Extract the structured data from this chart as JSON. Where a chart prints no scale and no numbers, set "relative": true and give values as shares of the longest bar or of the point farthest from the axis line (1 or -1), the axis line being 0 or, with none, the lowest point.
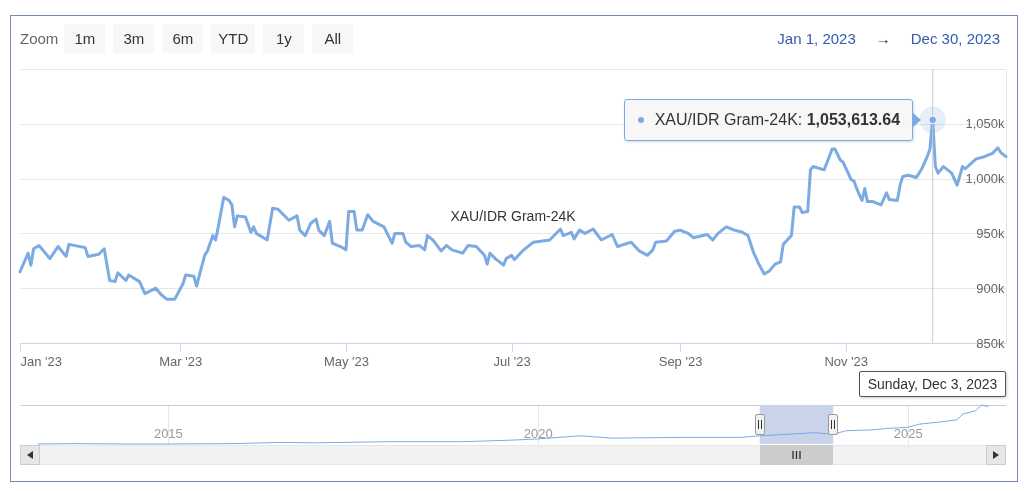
{
  "chart_data": [
    {
      "type": "line",
      "x": [
        "2023-01-01",
        "2023-01-04",
        "2023-01-05",
        "2023-01-06",
        "2023-01-08",
        "2023-01-12",
        "2023-01-15",
        "2023-01-18",
        "2023-01-19",
        "2023-01-25",
        "2023-01-26",
        "2023-01-30",
        "2023-02-01",
        "2023-02-03",
        "2023-02-05",
        "2023-02-06",
        "2023-02-09",
        "2023-02-10",
        "2023-02-14",
        "2023-02-16",
        "2023-02-20",
        "2023-02-22",
        "2023-02-24",
        "2023-02-27",
        "2023-03-02",
        "2023-03-03",
        "2023-03-06",
        "2023-03-07",
        "2023-03-10",
        "2023-03-11",
        "2023-03-13",
        "2023-03-14",
        "2023-03-15",
        "2023-03-17",
        "2023-03-19",
        "2023-03-20",
        "2023-03-21",
        "2023-03-22",
        "2023-03-25",
        "2023-03-27",
        "2023-03-28",
        "2023-03-29",
        "2023-04-02",
        "2023-04-04",
        "2023-04-06",
        "2023-04-10",
        "2023-04-13",
        "2023-04-14",
        "2023-04-16",
        "2023-04-18",
        "2023-04-20",
        "2023-04-21",
        "2023-04-23",
        "2023-04-25",
        "2023-04-26",
        "2023-04-29",
        "2023-05-01",
        "2023-05-02",
        "2023-05-04",
        "2023-05-05",
        "2023-05-07",
        "2023-05-09",
        "2023-05-11",
        "2023-05-15",
        "2023-05-18",
        "2023-05-19",
        "2023-05-22",
        "2023-05-23",
        "2023-05-25",
        "2023-05-28",
        "2023-05-30",
        "2023-05-31",
        "2023-06-02",
        "2023-06-05",
        "2023-06-07",
        "2023-06-09",
        "2023-06-13",
        "2023-06-15",
        "2023-06-18",
        "2023-06-21",
        "2023-06-22",
        "2023-06-23",
        "2023-06-25",
        "2023-06-28",
        "2023-06-29",
        "2023-07-01",
        "2023-07-02",
        "2023-07-05",
        "2023-07-09",
        "2023-07-15",
        "2023-07-19",
        "2023-07-20",
        "2023-07-23",
        "2023-07-24",
        "2023-07-26",
        "2023-07-28",
        "2023-07-31",
        "2023-08-03",
        "2023-08-07",
        "2023-08-09",
        "2023-08-14",
        "2023-08-17",
        "2023-08-20",
        "2023-08-22",
        "2023-08-23",
        "2023-08-27",
        "2023-08-30",
        "2023-09-01",
        "2023-09-04",
        "2023-09-06",
        "2023-09-11",
        "2023-09-13",
        "2023-09-15",
        "2023-09-18",
        "2023-09-21",
        "2023-09-24",
        "2023-09-26",
        "2023-09-28",
        "2023-09-30",
        "2023-10-02",
        "2023-10-04",
        "2023-10-06",
        "2023-10-08",
        "2023-10-09",
        "2023-10-12",
        "2023-10-13",
        "2023-10-15",
        "2023-10-16",
        "2023-10-18",
        "2023-10-19",
        "2023-10-20",
        "2023-10-24",
        "2023-10-25",
        "2023-10-27",
        "2023-10-28",
        "2023-10-30",
        "2023-10-31",
        "2023-11-03",
        "2023-11-04",
        "2023-11-05",
        "2023-11-07",
        "2023-11-08",
        "2023-11-09",
        "2023-11-11",
        "2023-11-14",
        "2023-11-16",
        "2023-11-17",
        "2023-11-20",
        "2023-11-21",
        "2023-11-22",
        "2023-11-24",
        "2023-11-27",
        "2023-11-29",
        "2023-12-01",
        "2023-12-02",
        "2023-12-03",
        "2023-12-04",
        "2023-12-05",
        "2023-12-07",
        "2023-12-10",
        "2023-12-12",
        "2023-12-14",
        "2023-12-15",
        "2023-12-19",
        "2023-12-22",
        "2023-12-25",
        "2023-12-27",
        "2023-12-28",
        "2023-12-30"
      ],
      "series": [
        {
          "name": "XAU/IDR Gram-24K",
          "color": "#7cabe3",
          "values": [
            915000,
            932000,
            921000,
            936000,
            939000,
            927000,
            938000,
            929000,
            940000,
            937000,
            929000,
            931000,
            936000,
            907000,
            906000,
            914000,
            907000,
            912000,
            906000,
            895000,
            900000,
            894000,
            890000,
            890000,
            904000,
            912000,
            911000,
            902000,
            930000,
            934000,
            948000,
            944000,
            956000,
            983000,
            980000,
            976000,
            956000,
            966000,
            965000,
            951000,
            956000,
            950000,
            944000,
            973000,
            972000,
            962000,
            966000,
            953000,
            948000,
            959000,
            963000,
            953000,
            948000,
            961000,
            941000,
            938000,
            935000,
            970000,
            970000,
            953000,
            953000,
            967000,
            961000,
            956000,
            941000,
            950000,
            950000,
            942000,
            938000,
            939000,
            935000,
            948000,
            944000,
            934000,
            939000,
            935000,
            932000,
            939000,
            938000,
            930000,
            922000,
            932000,
            927000,
            921000,
            927000,
            930000,
            926000,
            934000,
            942000,
            944000,
            954000,
            948000,
            951000,
            945000,
            953000,
            950000,
            954000,
            944000,
            949000,
            938000,
            942000,
            934000,
            930000,
            935000,
            942000,
            943000,
            952000,
            953000,
            950000,
            946000,
            949000,
            944000,
            950000,
            956000,
            953000,
            951000,
            948000,
            933000,
            922000,
            913000,
            916000,
            922000,
            924000,
            940000,
            948000,
            974000,
            974000,
            969000,
            970000,
            1008000,
            1011000,
            1008000,
            1014000,
            1027000,
            1027000,
            1017000,
            1015000,
            999000,
            998000,
            991000,
            980000,
            991000,
            979000,
            979000,
            976000,
            987000,
            981000,
            980000,
            994000,
            1002000,
            1003000,
            1001000,
            1009000,
            1020000,
            1027000,
            1053613.64,
            1011000,
            1005000,
            1011000,
            1005000,
            994000,
            1011000,
            1009000,
            1018000,
            1020000,
            1023000,
            1028000,
            1024000,
            1020000
          ]
        }
      ],
      "xlim": [
        "2023-01-01",
        "2023-12-30"
      ],
      "xticks": [
        {
          "value": "2023-01-01",
          "label": "Jan '23"
        },
        {
          "value": "2023-03-01",
          "label": "Mar '23"
        },
        {
          "value": "2023-05-01",
          "label": "May '23"
        },
        {
          "value": "2023-07-01",
          "label": "Jul '23"
        },
        {
          "value": "2023-09-01",
          "label": "Sep '23"
        },
        {
          "value": "2023-11-01",
          "label": "Nov '23"
        }
      ],
      "ylim": [
        850000,
        1100000
      ],
      "yticks": [
        {
          "value": 850000,
          "label": "850k"
        },
        {
          "value": 900000,
          "label": "900k"
        },
        {
          "value": 950000,
          "label": "950k"
        },
        {
          "value": 1000000,
          "label": "1,000k"
        },
        {
          "value": 1050000,
          "label": "1,050k"
        },
        {
          "value": 1100000,
          "label": null
        }
      ],
      "grid": "y",
      "ref_lines": [
        {
          "axis": "x",
          "value": "2023-12-03",
          "label": "Sunday, Dec 3, 2023",
          "color": "#cccccc"
        }
      ],
      "annotations": [
        "Zoom",
        "1m",
        "3m",
        "6m",
        "YTD",
        "1y",
        "All",
        "Jan 1, 2023",
        "→",
        "Dec 30, 2023",
        {
          "text": "XAU/IDR Gram-24K: 1,053,613.64",
          "x": "2023-12-03",
          "y": 1053613.64
        }
      ]
    },
    {
      "type": "line",
      "relative": true,
      "x": [
        "2013-04",
        "2013-10",
        "2014-06",
        "2015-01",
        "2015-12",
        "2016-07",
        "2017-01",
        "2018-01",
        "2019-01",
        "2019-09",
        "2020-01",
        "2020-08",
        "2021-01",
        "2022-01",
        "2022-10",
        "2023-01",
        "2023-10",
        "2024-01",
        "2024-03",
        "2024-07",
        "2024-10",
        "2025-01",
        "2025-03",
        "2025-06",
        "2025-09",
        "2025-10",
        "2025-12",
        "2026-01",
        "2026-02"
      ],
      "series": [
        {
          "color": "#7cabe3",
          "values": [
            0,
            0.01,
            0,
            0,
            0.01,
            0.04,
            0.03,
            0.06,
            0.06,
            0.1,
            0.13,
            0.21,
            0.15,
            0.17,
            0.17,
            0.21,
            0.29,
            0.25,
            0.34,
            0.36,
            0.4,
            0.43,
            0.51,
            0.56,
            0.62,
            0.77,
            0.85,
            1,
            0.96
          ]
        }
      ],
      "xlim": [
        "2013-01",
        "2026-05"
      ],
      "xticks": [
        {
          "value": "2015",
          "label": "2015"
        },
        {
          "value": "2020",
          "label": "2020"
        },
        {
          "value": "2025",
          "label": "2025"
        }
      ],
      "grid": "x",
      "tick_labels": "x",
      "bands": [
        {
          "axis": "x",
          "from": "2023-01-01",
          "to": "2023-12-30",
          "color": "#c9d3ea"
        }
      ]
    }
  ]
}
